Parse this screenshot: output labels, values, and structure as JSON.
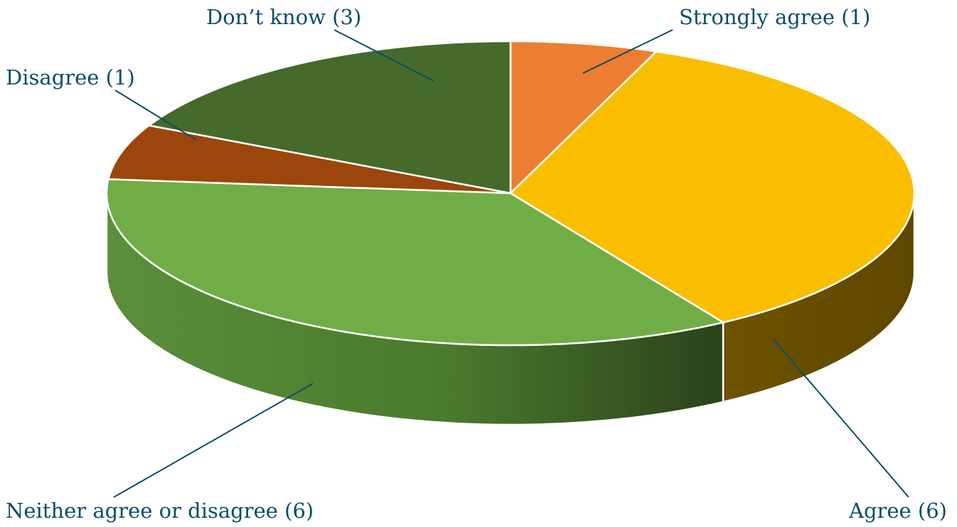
{
  "chart_data": {
    "type": "pie",
    "style": "3d",
    "title": "",
    "legend": "none",
    "slices": [
      {
        "label": "Strongly agree",
        "value": 1,
        "display": "Strongly agree (1)",
        "color": "#ED7D31"
      },
      {
        "label": "Agree",
        "value": 6,
        "display": "Agree (6)",
        "color": "#FABE00"
      },
      {
        "label": "Neither agree or disagree",
        "value": 6,
        "display": "Neither agree or disagree (6)",
        "color": "#70AD47"
      },
      {
        "label": "Disagree",
        "value": 1,
        "display": "Disagree (1)",
        "color": "#9C460D"
      },
      {
        "label": "Don’t know",
        "value": 3,
        "display": "Don’t know (3)",
        "color": "#456A2C"
      }
    ]
  }
}
